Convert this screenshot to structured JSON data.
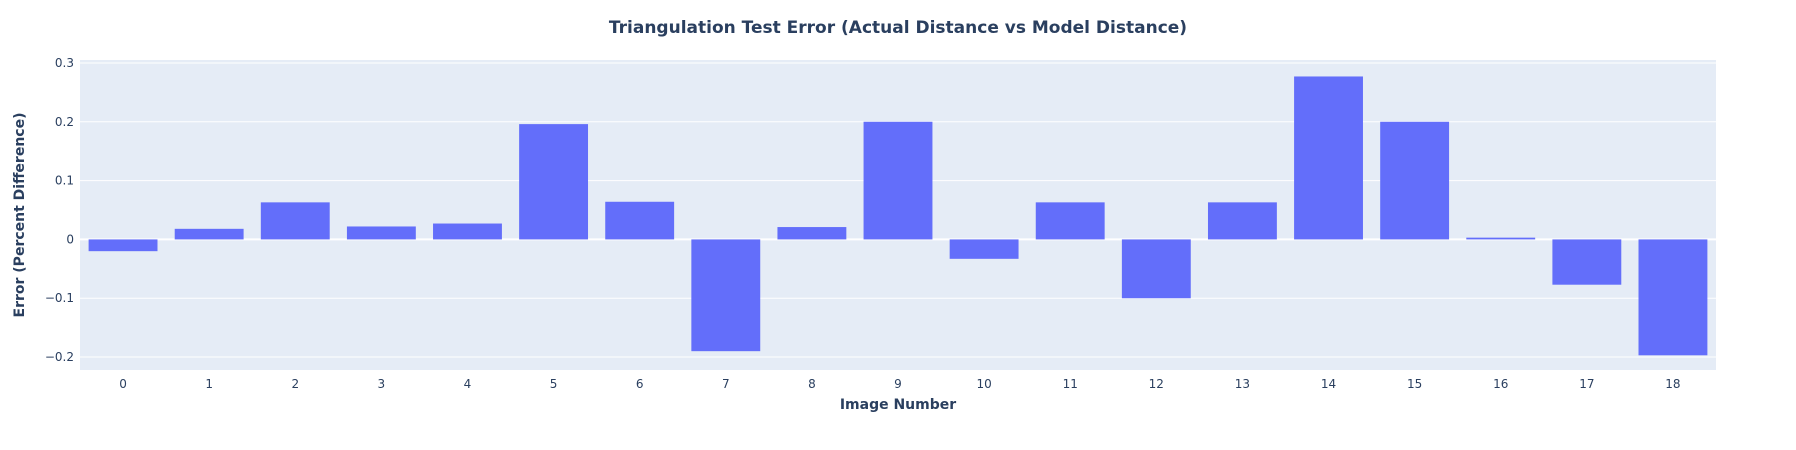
{
  "chart_data": {
    "type": "bar",
    "title": "Triangulation Test Error (Actual Distance vs Model Distance)",
    "xlabel": "Image Number",
    "ylabel": "Error (Percent Difference)",
    "categories": [
      "0",
      "1",
      "2",
      "3",
      "4",
      "5",
      "6",
      "7",
      "8",
      "9",
      "10",
      "11",
      "12",
      "13",
      "14",
      "15",
      "16",
      "17",
      "18"
    ],
    "values": [
      -0.02,
      0.018,
      0.063,
      0.022,
      0.027,
      0.196,
      0.064,
      -0.19,
      0.021,
      0.2,
      -0.033,
      0.063,
      -0.1,
      0.063,
      0.277,
      0.2,
      0.003,
      -0.077,
      -0.197
    ],
    "ylim": [
      -0.222,
      0.305
    ],
    "yticks": [
      -0.2,
      -0.1,
      0,
      0.1,
      0.2,
      0.3
    ],
    "ytick_labels": [
      "−0.2",
      "−0.1",
      "0",
      "0.1",
      "0.2",
      "0.3"
    ],
    "grid": true,
    "colors": {
      "bar": "#636efa",
      "plot_bg": "#e5ecf6",
      "text": "#2a3f5f"
    }
  }
}
